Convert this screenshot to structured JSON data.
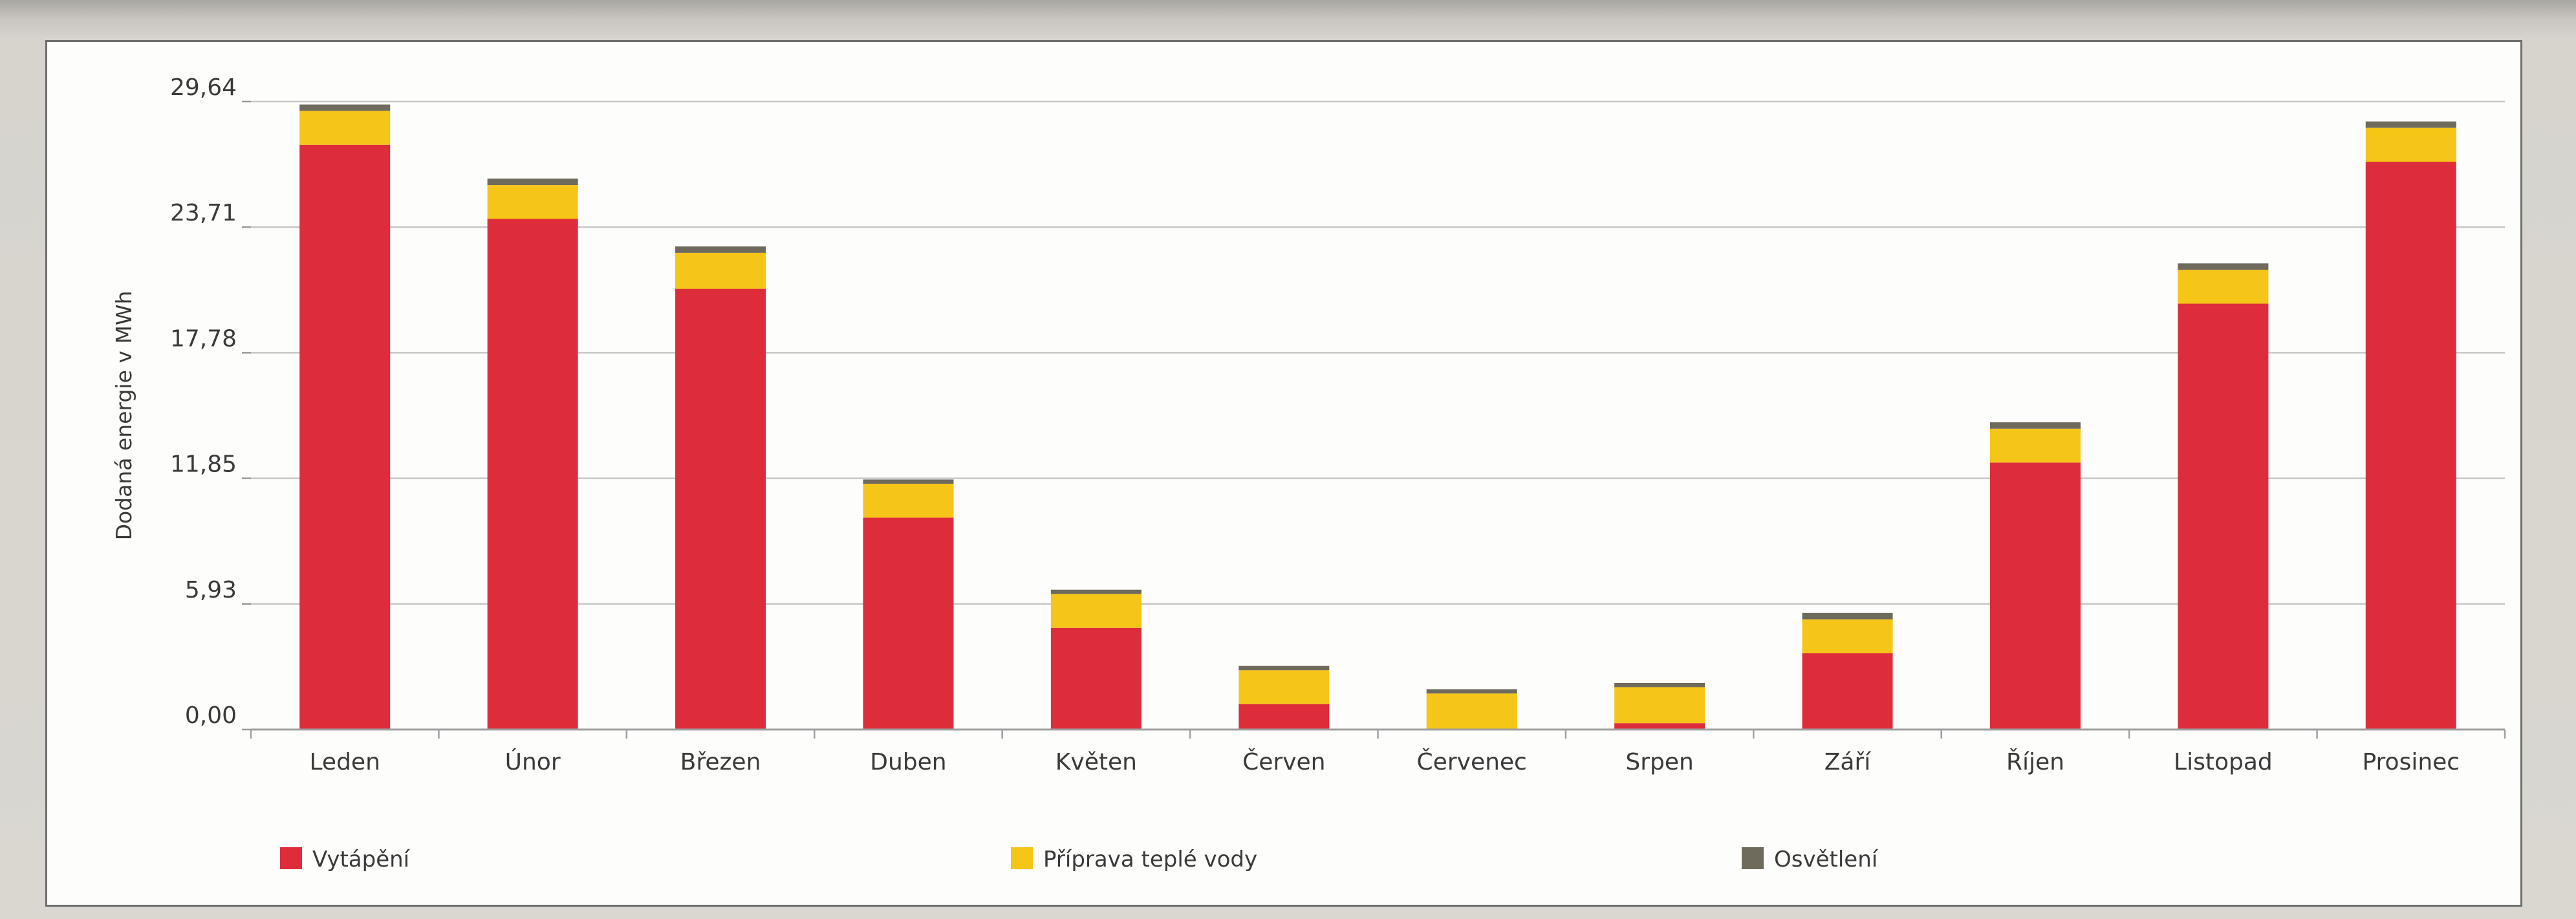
{
  "chart_data": {
    "type": "bar",
    "stacked": true,
    "categories": [
      "Leden",
      "Únor",
      "Březen",
      "Duben",
      "Květen",
      "Červen",
      "Červenec",
      "Srpen",
      "Září",
      "Říjen",
      "Listopad",
      "Prosinec"
    ],
    "series": [
      {
        "name": "Vytápění",
        "color": "#de2d3a",
        "values": [
          27.6,
          24.1,
          20.8,
          10.0,
          4.8,
          1.2,
          0.0,
          0.3,
          3.6,
          12.6,
          20.1,
          26.8
        ]
      },
      {
        "name": "Příprava teplé vody",
        "color": "#f5c518",
        "values": [
          1.6,
          1.6,
          1.7,
          1.6,
          1.6,
          1.6,
          1.7,
          1.7,
          1.6,
          1.6,
          1.6,
          1.6
        ]
      },
      {
        "name": "Osvětlení",
        "color": "#6e6a5c",
        "values": [
          0.3,
          0.3,
          0.3,
          0.2,
          0.2,
          0.2,
          0.2,
          0.2,
          0.3,
          0.3,
          0.3,
          0.3
        ]
      }
    ],
    "ylabel": "Dodaná energie v MWh",
    "xlabel": "",
    "yticks": [
      "0,00",
      "5,93",
      "11,85",
      "17,78",
      "23,71",
      "29,64"
    ],
    "ylim": [
      0,
      29.64
    ],
    "grid": true,
    "legend_position": "bottom"
  }
}
